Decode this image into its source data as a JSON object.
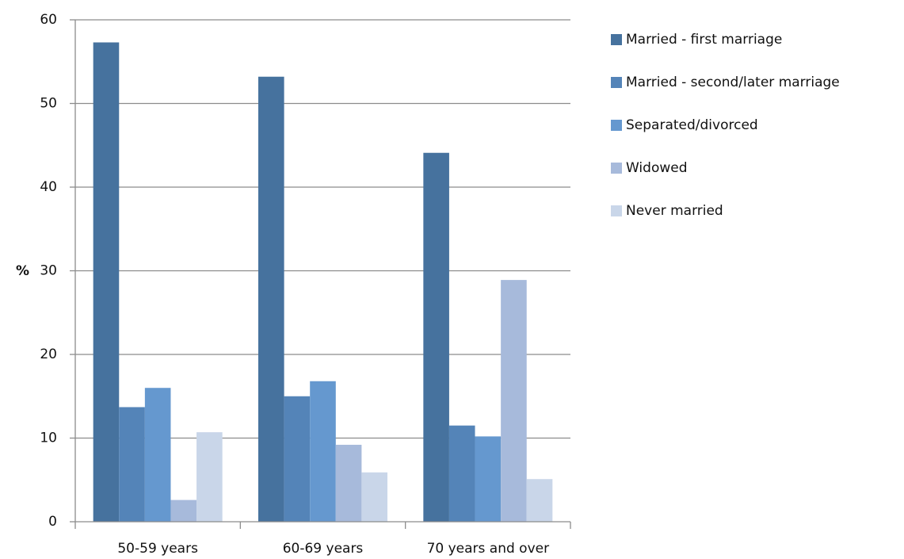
{
  "chart_data": {
    "type": "bar",
    "ylabel": "%",
    "categories": [
      "50-59 years",
      "60-69 years",
      "70 years and over"
    ],
    "series": [
      {
        "name": "Married - first marriage",
        "color": "#46729e",
        "values": [
          57.3,
          53.2,
          44.1
        ]
      },
      {
        "name": "Married - second/later marriage",
        "color": "#5484b8",
        "values": [
          13.7,
          15.0,
          11.5
        ]
      },
      {
        "name": "Separated/divorced",
        "color": "#6598cf",
        "values": [
          16.0,
          16.8,
          10.2
        ]
      },
      {
        "name": "Widowed",
        "color": "#a7badb",
        "values": [
          2.6,
          9.2,
          28.9
        ]
      },
      {
        "name": "Never married",
        "color": "#c9d6e9",
        "values": [
          10.7,
          5.9,
          5.1
        ]
      }
    ],
    "ylim": [
      0,
      60
    ],
    "yticks": [
      0,
      10,
      20,
      30,
      40,
      50,
      60
    ],
    "grid": true,
    "legend": "right"
  }
}
